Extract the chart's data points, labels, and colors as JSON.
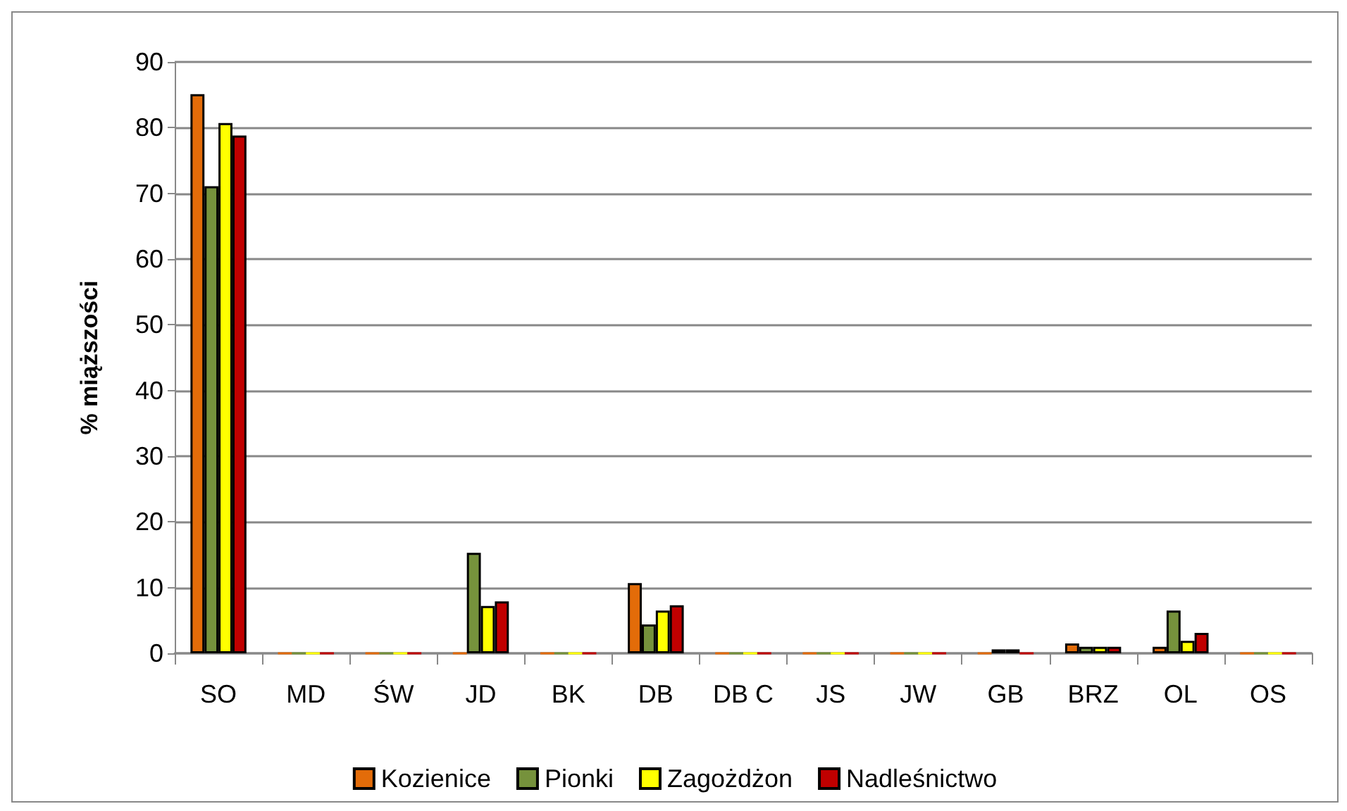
{
  "chart_data": {
    "type": "bar",
    "ylabel": "% miąższości",
    "categories": [
      "SO",
      "MD",
      "ŚW",
      "JD",
      "BK",
      "DB",
      "DB C",
      "JS",
      "JW",
      "GB",
      "BRZ",
      "OL",
      "OS"
    ],
    "series": [
      {
        "name": "Kozienice",
        "color": "#e36c09",
        "values": [
          85.1,
          0,
          0,
          0,
          0,
          10.7,
          0,
          0,
          0,
          0,
          1.5,
          1.0,
          0
        ]
      },
      {
        "name": "Pionki",
        "color": "#76923c",
        "values": [
          71.1,
          0,
          0,
          15.3,
          0,
          4.4,
          0,
          0,
          0,
          0.6,
          1.0,
          6.5,
          0
        ]
      },
      {
        "name": "Zagożdżon",
        "color": "#ffff00",
        "values": [
          80.7,
          0,
          0,
          7.2,
          0,
          6.5,
          0,
          0,
          0,
          0.6,
          1.0,
          1.9,
          0
        ]
      },
      {
        "name": "Nadleśnictwo",
        "color": "#c00000",
        "values": [
          78.8,
          0,
          0,
          7.9,
          0,
          7.3,
          0,
          0,
          0,
          0,
          1.0,
          3.1,
          0
        ]
      }
    ],
    "ylim": [
      0,
      90
    ],
    "yticks": [
      0,
      10,
      20,
      30,
      40,
      50,
      60,
      70,
      80,
      90
    ],
    "grid": "y",
    "legend": "bottom"
  }
}
